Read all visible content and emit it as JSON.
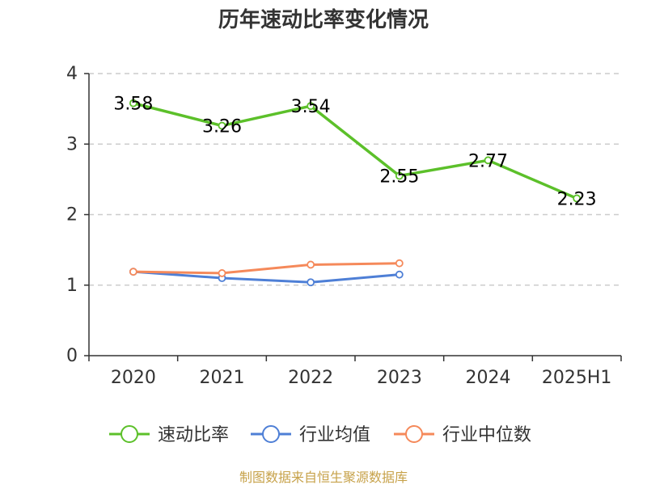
{
  "chart_data": {
    "type": "line",
    "title": "历年速动比率变化情况",
    "categories": [
      "2020",
      "2021",
      "2022",
      "2023",
      "2024",
      "2025H1"
    ],
    "ylim": [
      0,
      4
    ],
    "yticks": [
      0,
      1,
      2,
      3,
      4
    ],
    "grid": true,
    "legend_position": "bottom",
    "series": [
      {
        "name": "速动比率",
        "color": "#5cc02a",
        "values": [
          3.58,
          3.26,
          3.54,
          2.55,
          2.77,
          2.23
        ],
        "show_labels": true,
        "data_labels": [
          "3.58",
          "3.26",
          "3.54",
          "2.55",
          "2.77",
          "2.23"
        ]
      },
      {
        "name": "行业均值",
        "color": "#4e7fd6",
        "values": [
          1.19,
          1.1,
          1.04,
          1.15,
          null,
          null
        ],
        "show_labels": false
      },
      {
        "name": "行业中位数",
        "color": "#f5895a",
        "values": [
          1.19,
          1.17,
          1.29,
          1.31,
          null,
          null
        ],
        "show_labels": false
      }
    ]
  },
  "source": "制图数据来自恒生聚源数据库"
}
